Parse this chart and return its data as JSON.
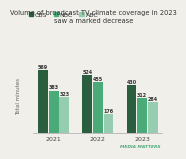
{
  "title": "Volume of broadcast TV climate coverage in 2023\nsaw a marked decrease",
  "ylabel": "Total minutes",
  "years": [
    "2021",
    "2022",
    "2023"
  ],
  "networks": [
    "CBS",
    "NBC",
    "ABC"
  ],
  "values": {
    "CBS": [
      569,
      524,
      430
    ],
    "NBC": [
      383,
      455,
      312
    ],
    "ABC": [
      323,
      176,
      284
    ]
  },
  "bar_colors": {
    "CBS": "#2a5e3f",
    "NBC": "#4aaa78",
    "ABC": "#96ccb0"
  },
  "bar_width": 0.24,
  "ylim": [
    0,
    660
  ],
  "title_fontsize": 4.8,
  "tick_fontsize": 4.5,
  "ylabel_fontsize": 4.0,
  "legend_fontsize": 4.5,
  "value_fontsize": 3.5,
  "background_color": "#f0efea",
  "footer_text": "MEDIA MATTERS"
}
